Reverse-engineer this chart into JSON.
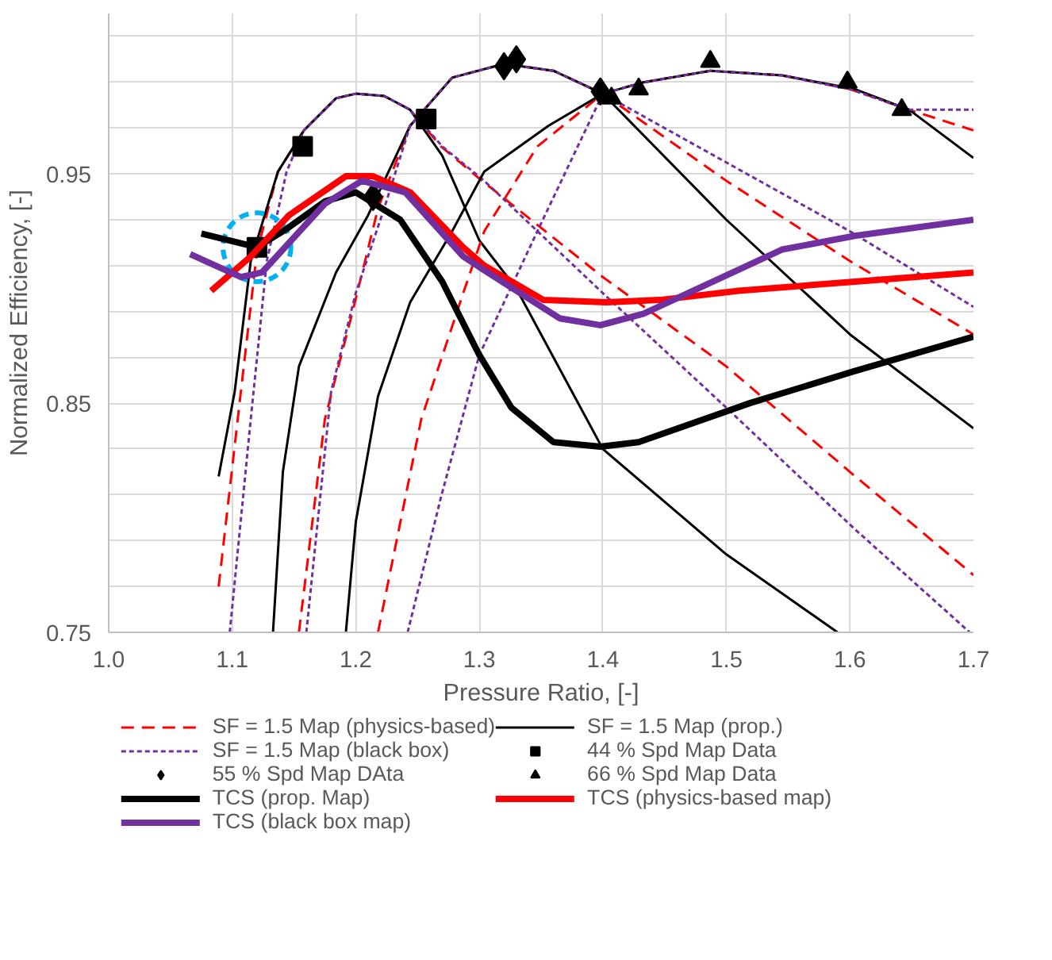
{
  "chart_data": {
    "type": "line",
    "xlabel": "Pressure Ratio, [-]",
    "ylabel": "Normalized Efficiency, [-]",
    "xlim": [
      1.0,
      1.7
    ],
    "ylim": [
      0.75,
      1.02
    ],
    "xticks": [
      {
        "value": 1.0,
        "label": "1.0"
      },
      {
        "value": 1.1,
        "label": "1.1"
      },
      {
        "value": 1.2,
        "label": "1.2"
      },
      {
        "value": 1.3,
        "label": "1.3"
      },
      {
        "value": 1.4,
        "label": "1.4"
      },
      {
        "value": 1.5,
        "label": "1.5"
      },
      {
        "value": 1.6,
        "label": "1.6"
      },
      {
        "value": 1.7,
        "label": "1.7"
      }
    ],
    "yticks": [
      0.75,
      {
        "value": 0.77,
        "label": null
      },
      {
        "value": 0.79,
        "label": null
      },
      {
        "value": 0.81,
        "label": null
      },
      {
        "value": 0.83,
        "label": null
      },
      0.85,
      {
        "value": 0.87,
        "label": null
      },
      {
        "value": 0.89,
        "label": null
      },
      {
        "value": 0.91,
        "label": null
      },
      {
        "value": 0.93,
        "label": null
      },
      0.95,
      {
        "value": 0.97,
        "label": null
      },
      {
        "value": 0.99,
        "label": null
      },
      {
        "value": 1.01,
        "label": null
      }
    ],
    "grid": true,
    "legend": "bottom",
    "series": [
      {
        "name": "SF = 1.5 Map (physics-based)",
        "color": "#ff0000",
        "line_style": "dashed",
        "x": [
          1.089,
          1.107,
          1.12,
          1.137,
          1.158,
          1.184,
          1.2,
          1.223,
          1.244,
          1.269,
          1.3,
          1.4,
          1.5,
          1.6,
          1.7
        ],
        "values": [
          0.77,
          0.855,
          0.916,
          0.951,
          0.969,
          0.983,
          0.985,
          0.984,
          0.978,
          0.962,
          0.948,
          0.905,
          0.866,
          0.82,
          0.775
        ]
      },
      {
        "name": "SF = 1.5 Map (prop.)",
        "color": "#000000",
        "line_style": "solid",
        "x": [
          1.089,
          1.102,
          1.115,
          1.137,
          1.158,
          1.184,
          1.2,
          1.223,
          1.244,
          1.27,
          1.3,
          1.33,
          1.4,
          1.5,
          1.59
        ],
        "values": [
          0.818,
          0.855,
          0.912,
          0.951,
          0.969,
          0.983,
          0.985,
          0.984,
          0.978,
          0.958,
          0.921,
          0.9,
          0.83,
          0.784,
          0.75
        ]
      },
      {
        "name": "SF = 1.5 Map (black box)",
        "color": "#7030a0",
        "line_style": "dotted",
        "x": [
          1.098,
          1.115,
          1.128,
          1.144,
          1.158,
          1.184,
          1.2,
          1.223,
          1.244,
          1.27,
          1.304,
          1.4,
          1.5,
          1.604,
          1.697
        ],
        "values": [
          0.75,
          0.843,
          0.912,
          0.951,
          0.969,
          0.983,
          0.985,
          0.984,
          0.978,
          0.962,
          0.947,
          0.898,
          0.848,
          0.795,
          0.75
        ]
      },
      {
        "color": "#ff0000",
        "line_style": "dashed",
        "x": [
          1.154,
          1.175,
          1.197,
          1.218,
          1.244,
          1.278,
          1.32,
          1.36,
          1.4,
          1.5,
          1.6,
          1.7
        ],
        "values": [
          0.75,
          0.843,
          0.889,
          0.935,
          0.971,
          0.992,
          0.998,
          0.995,
          0.985,
          0.947,
          0.912,
          0.88
        ]
      },
      {
        "color": "#000000",
        "line_style": "solid",
        "x": [
          1.133,
          1.141,
          1.154,
          1.184,
          1.21,
          1.244,
          1.278,
          1.32,
          1.36,
          1.4,
          1.5,
          1.6,
          1.7
        ],
        "values": [
          0.75,
          0.82,
          0.866,
          0.907,
          0.932,
          0.971,
          0.992,
          0.998,
          0.995,
          0.985,
          0.93,
          0.88,
          0.839
        ]
      },
      {
        "color": "#7030a0",
        "line_style": "dotted",
        "x": [
          1.16,
          1.18,
          1.2,
          1.223,
          1.244,
          1.278,
          1.32,
          1.36,
          1.4,
          1.5,
          1.6,
          1.7
        ],
        "values": [
          0.75,
          0.855,
          0.898,
          0.935,
          0.971,
          0.992,
          0.998,
          0.995,
          0.985,
          0.955,
          0.925,
          0.892
        ]
      },
      {
        "color": "#ff0000",
        "line_style": "dashed",
        "x": [
          1.218,
          1.253,
          1.287,
          1.304,
          1.347,
          1.4,
          1.433,
          1.487,
          1.545,
          1.6,
          1.648,
          1.7
        ],
        "values": [
          0.75,
          0.843,
          0.898,
          0.925,
          0.962,
          0.985,
          0.99,
          0.995,
          0.993,
          0.987,
          0.978,
          0.969
        ]
      },
      {
        "color": "#000000",
        "line_style": "solid",
        "x": [
          1.192,
          1.2,
          1.218,
          1.244,
          1.278,
          1.304,
          1.356,
          1.4,
          1.433,
          1.487,
          1.545,
          1.604,
          1.648,
          1.7
        ],
        "values": [
          0.75,
          0.798,
          0.853,
          0.894,
          0.925,
          0.951,
          0.971,
          0.985,
          0.99,
          0.995,
          0.993,
          0.987,
          0.978,
          0.957
        ]
      },
      {
        "color": "#7030a0",
        "line_style": "dotted",
        "x": [
          1.242,
          1.269,
          1.3,
          1.347,
          1.4,
          1.433,
          1.487,
          1.545,
          1.6,
          1.648,
          1.7
        ],
        "values": [
          0.75,
          0.809,
          0.871,
          0.925,
          0.985,
          0.99,
          0.995,
          0.993,
          0.987,
          0.978,
          0.978
        ]
      },
      {
        "name": "44 % Spd Map Data",
        "type": "scatter",
        "marker": "square",
        "color": "#000000",
        "x": [
          1.12,
          1.157,
          1.257
        ],
        "values": [
          0.918,
          0.962,
          0.974
        ]
      },
      {
        "name": "55 % Spd Map DAta",
        "type": "scatter",
        "marker": "diamond",
        "color": "#000000",
        "x": [
          1.214,
          1.32,
          1.33,
          1.398
        ],
        "values": [
          0.94,
          0.997,
          1.0,
          0.986
        ]
      },
      {
        "name": "66 % Spd Map Data",
        "type": "scatter",
        "marker": "triangle",
        "color": "#000000",
        "x": [
          1.407,
          1.429,
          1.487,
          1.598,
          1.642
        ],
        "values": [
          0.983,
          0.987,
          0.999,
          0.99,
          0.978
        ]
      },
      {
        "name": "TCS (prop. Map)",
        "color": "#000000",
        "x": [
          1.075,
          1.12,
          1.144,
          1.175,
          1.2,
          1.236,
          1.27,
          1.3,
          1.326,
          1.36,
          1.398,
          1.429,
          1.519,
          1.604,
          1.7
        ],
        "values": [
          0.924,
          0.918,
          0.926,
          0.938,
          0.942,
          0.93,
          0.903,
          0.871,
          0.848,
          0.833,
          0.831,
          0.833,
          0.85,
          0.864,
          0.879
        ]
      },
      {
        "name": "TCS (physics-based map)",
        "color": "#ff0000",
        "x": [
          1.083,
          1.115,
          1.146,
          1.192,
          1.214,
          1.244,
          1.287,
          1.304,
          1.352,
          1.403,
          1.446,
          1.51,
          1.604,
          1.7
        ],
        "values": [
          0.899,
          0.914,
          0.932,
          0.949,
          0.949,
          0.942,
          0.918,
          0.91,
          0.895,
          0.894,
          0.895,
          0.899,
          0.903,
          0.907
        ]
      },
      {
        "name": "TCS (black box map)",
        "color": "#7030a0",
        "x": [
          1.066,
          1.107,
          1.124,
          1.175,
          1.205,
          1.24,
          1.287,
          1.304,
          1.365,
          1.398,
          1.433,
          1.545,
          1.604,
          1.7
        ],
        "values": [
          0.915,
          0.905,
          0.907,
          0.937,
          0.947,
          0.942,
          0.914,
          0.908,
          0.887,
          0.884,
          0.889,
          0.917,
          0.923,
          0.93
        ]
      }
    ]
  }
}
